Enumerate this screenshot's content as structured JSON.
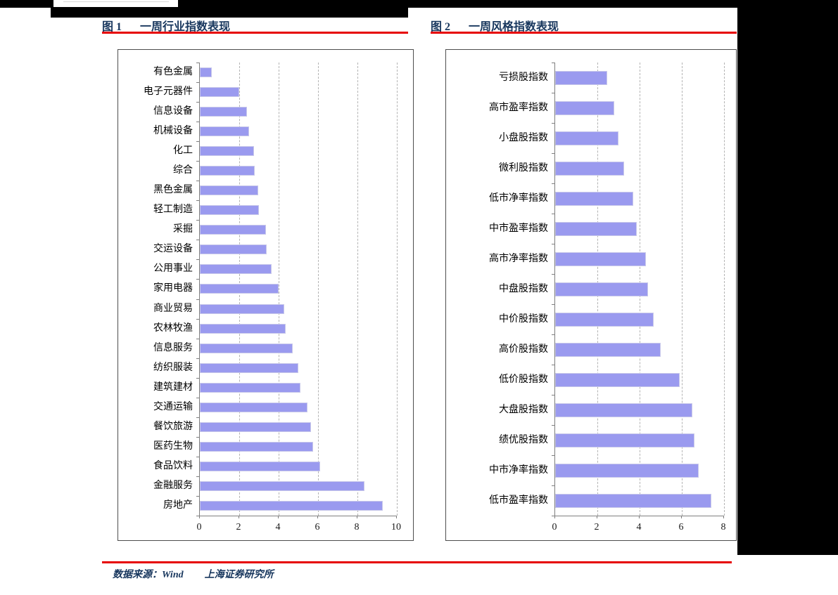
{
  "page": {
    "figure1": {
      "label": "图 1",
      "title": "一周行业指数表现"
    },
    "figure2": {
      "label": "图 2",
      "title": "一周风格指数表现"
    },
    "footer": {
      "source": "数据来源：Wind",
      "org": "上海证券研究所"
    },
    "colors": {
      "title_navy": "#17365D",
      "rule_red": "#E60000",
      "bar_fill": "#9A9AEF",
      "gridline": "#b3b3b3",
      "redaction_black": "#000000"
    }
  },
  "chart_data": [
    {
      "type": "bar",
      "orientation": "horizontal",
      "title": "一周行业指数表现",
      "categories": [
        "有色金属",
        "电子元器件",
        "信息设备",
        "机械设备",
        "化工",
        "综合",
        "黑色金属",
        "轻工制造",
        "采掘",
        "交运设备",
        "公用事业",
        "家用电器",
        "商业贸易",
        "农林牧渔",
        "信息服务",
        "纺织服装",
        "建筑建材",
        "交通运输",
        "餐饮旅游",
        "医药生物",
        "食品饮料",
        "金融服务",
        "房地产"
      ],
      "values": [
        0.6,
        2.0,
        2.4,
        2.5,
        2.75,
        2.8,
        2.95,
        3.0,
        3.35,
        3.4,
        3.65,
        4.0,
        4.3,
        4.35,
        4.7,
        5.0,
        5.1,
        5.45,
        5.65,
        5.75,
        6.1,
        8.35,
        9.3
      ],
      "xlabel": "",
      "ylabel": "",
      "xlim": [
        0,
        10
      ],
      "xticks": [
        0,
        2,
        4,
        6,
        8,
        10
      ],
      "grid": "dashed-vertical",
      "legend": "none",
      "bar_color": "#9A9AEF"
    },
    {
      "type": "bar",
      "orientation": "horizontal",
      "title": "一周风格指数表现",
      "categories": [
        "亏损股指数",
        "高市盈率指数",
        "小盘股指数",
        "微利股指数",
        "低市净率指数",
        "中市盈率指数",
        "高市净率指数",
        "中盘股指数",
        "中价股指数",
        "高价股指数",
        "低价股指数",
        "大盘股指数",
        "绩优股指数",
        "中市净率指数",
        "低市盈率指数"
      ],
      "values": [
        2.45,
        2.8,
        3.0,
        3.25,
        3.7,
        3.85,
        4.3,
        4.4,
        4.65,
        5.0,
        5.9,
        6.5,
        6.6,
        6.8,
        7.4
      ],
      "xlabel": "",
      "ylabel": "",
      "xlim": [
        0,
        8
      ],
      "xticks": [
        0,
        2,
        4,
        6,
        8
      ],
      "grid": "dashed-vertical",
      "legend": "none",
      "bar_color": "#9A9AEF"
    }
  ]
}
